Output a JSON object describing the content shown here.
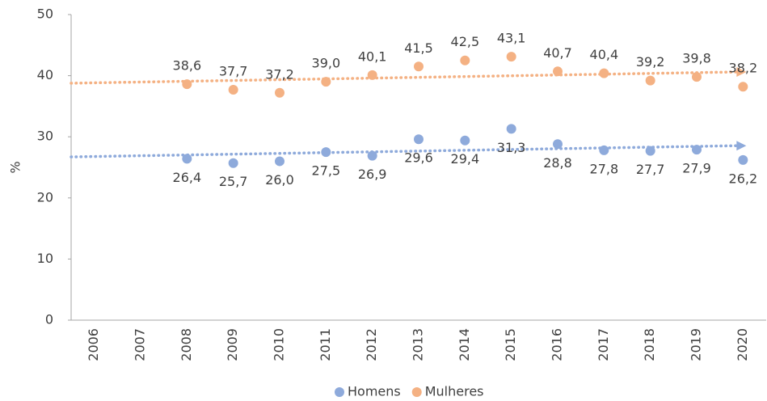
{
  "chart_data": {
    "type": "scatter",
    "categories": [
      "2006",
      "2007",
      "2008",
      "2009",
      "2010",
      "2011",
      "2012",
      "2013",
      "2014",
      "2015",
      "2016",
      "2017",
      "2018",
      "2019",
      "2020"
    ],
    "ylabel": "%",
    "ylim": [
      0,
      50
    ],
    "yticks": [
      0,
      10,
      20,
      30,
      40,
      50
    ],
    "trendline": true,
    "legend": "bottom",
    "series": [
      {
        "name": "Homens",
        "color": "#8eaadb",
        "labels": "below",
        "values": [
          null,
          null,
          26.4,
          25.7,
          26.0,
          27.5,
          26.9,
          29.6,
          29.4,
          31.3,
          28.8,
          27.8,
          27.7,
          27.9,
          26.2
        ],
        "value_labels": [
          null,
          null,
          "26,4",
          "25,7",
          "26,0",
          "27,5",
          "26,9",
          "29,6",
          "29,4",
          "31,3",
          "28,8",
          "27,8",
          "27,7",
          "27,9",
          "26,2"
        ]
      },
      {
        "name": "Mulheres",
        "color": "#f4b183",
        "labels": "above",
        "values": [
          null,
          null,
          38.6,
          37.7,
          37.2,
          39.0,
          40.1,
          41.5,
          42.5,
          43.1,
          40.7,
          40.4,
          39.2,
          39.8,
          38.2
        ],
        "value_labels": [
          null,
          null,
          "38,6",
          "37,7",
          "37,2",
          "39,0",
          "40,1",
          "41,5",
          "42,5",
          "43,1",
          "40,7",
          "40,4",
          "39,2",
          "39,8",
          "38,2"
        ]
      }
    ]
  }
}
